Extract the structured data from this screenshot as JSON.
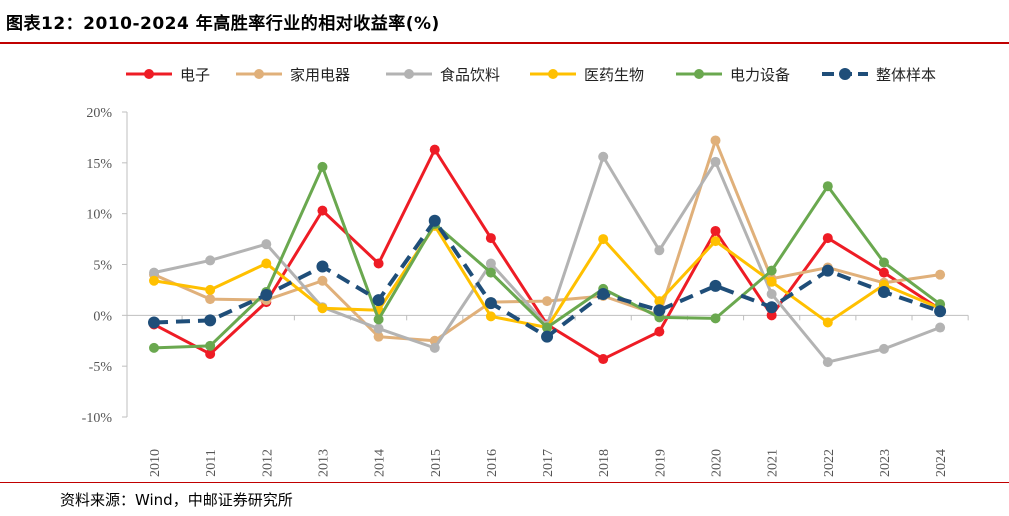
{
  "header": {
    "title": "图表12：2010-2024 年高胜率行业的相对收益率(%)"
  },
  "footer": {
    "source": "资料来源：Wind，中邮证券研究所"
  },
  "chart_data": {
    "type": "line",
    "x": [
      "2010",
      "2011",
      "2012",
      "2013",
      "2014",
      "2015",
      "2016",
      "2017",
      "2018",
      "2019",
      "2020",
      "2021",
      "2022",
      "2023",
      "2024"
    ],
    "y_ticks": [
      "20%",
      "15%",
      "10%",
      "5%",
      "0%",
      "-5%",
      "-10%"
    ],
    "ylim": [
      -10,
      20
    ],
    "grid": false,
    "legend_position": "top",
    "series": [
      {
        "name": "电子",
        "color": "#ee1c25",
        "dashed": false,
        "values": [
          -0.9,
          -3.8,
          1.3,
          10.3,
          5.1,
          16.3,
          7.6,
          -0.9,
          -4.3,
          -1.6,
          8.3,
          0.0,
          7.6,
          4.2,
          0.6
        ]
      },
      {
        "name": "家用电器",
        "color": "#e0b07a",
        "dashed": false,
        "values": [
          4.0,
          1.6,
          1.5,
          3.4,
          -2.1,
          -2.5,
          1.3,
          1.4,
          1.9,
          0.0,
          17.2,
          3.6,
          4.7,
          3.2,
          4.0
        ]
      },
      {
        "name": "食品饮料",
        "color": "#b3b3b3",
        "dashed": false,
        "values": [
          4.2,
          5.4,
          7.0,
          0.8,
          -1.3,
          -3.2,
          5.1,
          -1.0,
          15.6,
          6.4,
          15.1,
          2.1,
          -4.6,
          -3.3,
          -1.2
        ]
      },
      {
        "name": "医药生物",
        "color": "#ffc000",
        "dashed": false,
        "values": [
          3.4,
          2.5,
          5.1,
          0.7,
          0.5,
          8.8,
          -0.1,
          -1.2,
          7.5,
          1.4,
          7.3,
          3.3,
          -0.7,
          3.0,
          0.7
        ]
      },
      {
        "name": "电力设备",
        "color": "#6aa84f",
        "dashed": false,
        "values": [
          -3.2,
          -3.0,
          2.3,
          14.6,
          -0.4,
          9.0,
          4.2,
          -1.2,
          2.6,
          -0.2,
          -0.3,
          4.4,
          12.7,
          5.2,
          1.1
        ]
      },
      {
        "name": "整体样本",
        "color": "#1f4e79",
        "dashed": true,
        "values": [
          -0.7,
          -0.5,
          2.0,
          4.8,
          1.5,
          9.3,
          1.2,
          -2.1,
          2.1,
          0.5,
          2.9,
          0.8,
          4.4,
          2.3,
          0.4
        ]
      }
    ]
  }
}
